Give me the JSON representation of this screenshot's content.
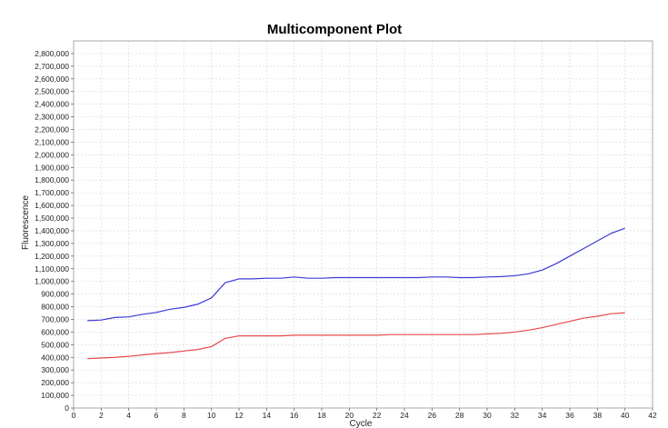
{
  "chart_data": {
    "type": "line",
    "title": "Multicomponent Plot",
    "xlabel": "Cycle",
    "ylabel": "Fluorescence",
    "xlim": [
      0,
      42
    ],
    "ylim": [
      0,
      2900000
    ],
    "x_ticks": [
      0,
      2,
      4,
      6,
      8,
      10,
      12,
      14,
      16,
      18,
      20,
      22,
      24,
      26,
      28,
      30,
      32,
      34,
      36,
      38,
      40,
      42
    ],
    "y_ticks": [
      0,
      100000,
      200000,
      300000,
      400000,
      500000,
      600000,
      700000,
      800000,
      900000,
      1000000,
      1100000,
      1200000,
      1300000,
      1400000,
      1500000,
      1600000,
      1700000,
      1800000,
      1900000,
      2000000,
      2100000,
      2200000,
      2300000,
      2400000,
      2500000,
      2600000,
      2700000,
      2800000
    ],
    "y_tick_labels": [
      "0",
      "100,000",
      "200,000",
      "300,000",
      "400,000",
      "500,000",
      "600,000",
      "700,000",
      "800,000",
      "900,000",
      "1,000,000",
      "1,100,000",
      "1,200,000",
      "1,300,000",
      "1,400,000",
      "1,500,000",
      "1,600,000",
      "1,700,000",
      "1,800,000",
      "1,900,000",
      "2,000,000",
      "2,100,000",
      "2,200,000",
      "2,300,000",
      "2,400,000",
      "2,500,000",
      "2,600,000",
      "2,700,000",
      "2,800,000"
    ],
    "grid": true,
    "colors": {
      "blue": "#3b3bd6",
      "red": "#e84a4a",
      "grid": "#dcdcdc",
      "border": "#aaaaaa"
    },
    "series": [
      {
        "color": "#3b3bd6",
        "x": [
          1,
          2,
          3,
          4,
          5,
          6,
          7,
          8,
          9,
          10,
          11,
          12,
          13,
          14,
          15,
          16,
          17,
          18,
          19,
          20,
          21,
          22,
          23,
          24,
          25,
          26,
          27,
          28,
          29,
          30,
          31,
          32,
          33,
          34,
          35,
          36,
          37,
          38,
          39,
          40
        ],
        "values": [
          690000,
          695000,
          715000,
          720000,
          740000,
          755000,
          780000,
          795000,
          820000,
          870000,
          990000,
          1020000,
          1020000,
          1025000,
          1025000,
          1035000,
          1025000,
          1025000,
          1030000,
          1030000,
          1030000,
          1030000,
          1030000,
          1030000,
          1030000,
          1035000,
          1035000,
          1030000,
          1030000,
          1035000,
          1038000,
          1045000,
          1060000,
          1090000,
          1140000,
          1200000,
          1260000,
          1320000,
          1380000,
          1420000
        ]
      },
      {
        "color": "#e84a4a",
        "x": [
          1,
          2,
          3,
          4,
          5,
          6,
          7,
          8,
          9,
          10,
          11,
          12,
          13,
          14,
          15,
          16,
          17,
          18,
          19,
          20,
          21,
          22,
          23,
          24,
          25,
          26,
          27,
          28,
          29,
          30,
          31,
          32,
          33,
          34,
          35,
          36,
          37,
          38,
          39,
          40
        ],
        "values": [
          390000,
          395000,
          400000,
          408000,
          420000,
          430000,
          438000,
          450000,
          462000,
          485000,
          550000,
          570000,
          570000,
          570000,
          570000,
          575000,
          575000,
          575000,
          575000,
          575000,
          575000,
          575000,
          580000,
          580000,
          580000,
          580000,
          580000,
          580000,
          580000,
          585000,
          590000,
          600000,
          615000,
          635000,
          660000,
          685000,
          710000,
          725000,
          745000,
          752000
        ]
      }
    ]
  }
}
